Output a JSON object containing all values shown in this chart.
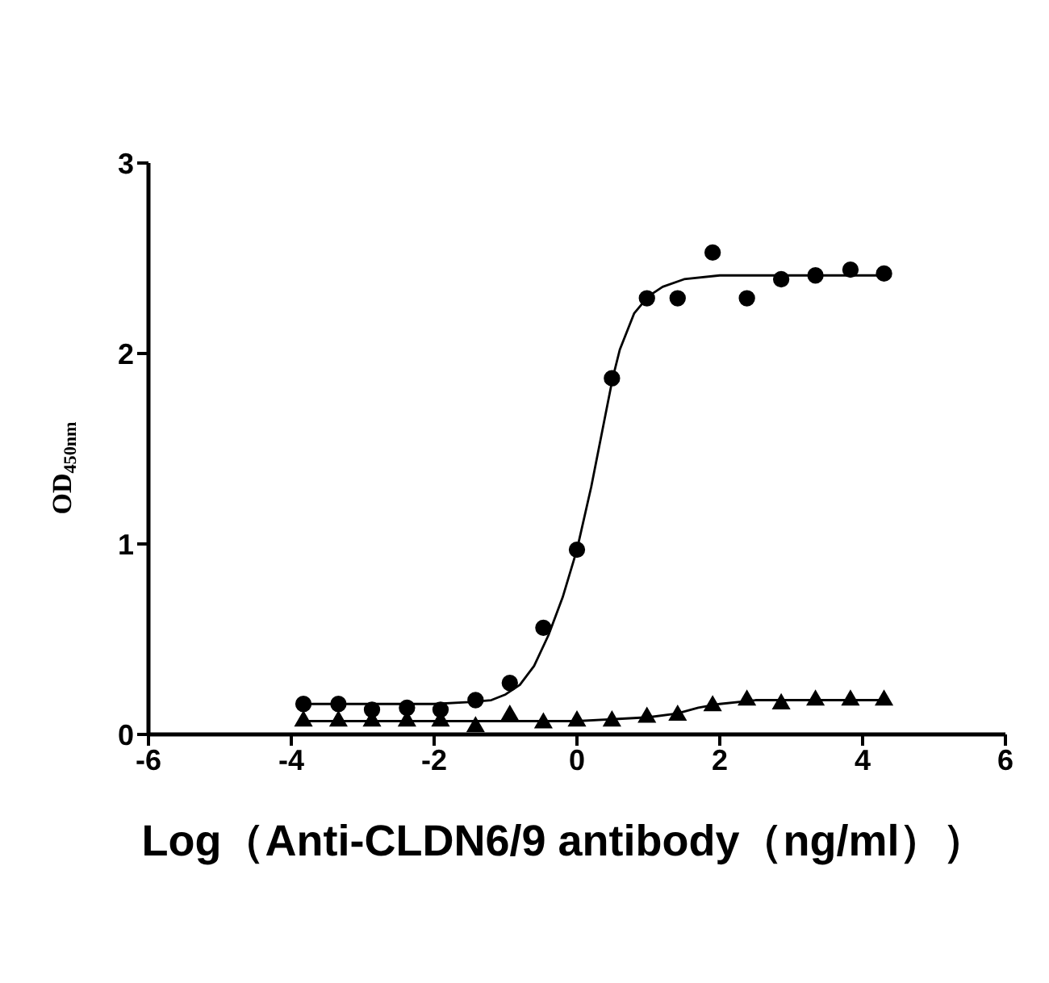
{
  "chart_data": {
    "type": "scatter",
    "xlabel": "Log（Anti-CLDN6/9 antibody（ng/ml））",
    "ylabel": "OD$_{450nm}$",
    "xlim": [
      -6,
      6
    ],
    "xticks": [
      -6,
      -4,
      -2,
      0,
      2,
      4,
      6
    ],
    "ylim": [
      0,
      3
    ],
    "yticks": [
      0,
      1,
      2,
      3
    ],
    "series": [
      {
        "marker": "circle",
        "color": "#000000",
        "x": [
          -3.83,
          -3.34,
          -2.87,
          -2.38,
          -1.91,
          -1.42,
          -0.94,
          -0.47,
          0.0,
          0.49,
          0.98,
          1.41,
          1.9,
          2.38,
          2.86,
          3.34,
          3.83,
          4.3
        ],
        "values": [
          0.16,
          0.16,
          0.13,
          0.14,
          0.13,
          0.18,
          0.27,
          0.56,
          0.97,
          1.87,
          2.29,
          2.29,
          2.53,
          2.29,
          2.39,
          2.41,
          2.44,
          2.42
        ]
      },
      {
        "type": "line",
        "marker": "none",
        "line_style": "solid",
        "color": "#000000",
        "x": [
          -3.83,
          -3.0,
          -2.0,
          -1.5,
          -1.2,
          -1.0,
          -0.8,
          -0.6,
          -0.4,
          -0.2,
          0.0,
          0.2,
          0.4,
          0.5,
          0.6,
          0.8,
          1.0,
          1.2,
          1.5,
          2.0,
          3.0,
          4.3
        ],
        "values": [
          0.16,
          0.16,
          0.16,
          0.17,
          0.18,
          0.21,
          0.26,
          0.36,
          0.52,
          0.72,
          0.97,
          1.3,
          1.68,
          1.87,
          2.02,
          2.21,
          2.3,
          2.35,
          2.39,
          2.41,
          2.41,
          2.41
        ]
      },
      {
        "marker": "triangle",
        "color": "#000000",
        "x": [
          -3.83,
          -3.34,
          -2.87,
          -2.38,
          -1.91,
          -1.42,
          -0.94,
          -0.47,
          0.0,
          0.49,
          0.98,
          1.41,
          1.9,
          2.38,
          2.86,
          3.34,
          3.83,
          4.3
        ],
        "values": [
          0.07,
          0.07,
          0.07,
          0.07,
          0.07,
          0.04,
          0.1,
          0.06,
          0.07,
          0.07,
          0.09,
          0.1,
          0.15,
          0.18,
          0.16,
          0.18,
          0.18,
          0.18
        ]
      },
      {
        "type": "line",
        "marker": "none",
        "line_style": "solid",
        "color": "#000000",
        "x": [
          -3.83,
          -1.0,
          0.0,
          0.5,
          1.0,
          1.4,
          1.7,
          2.0,
          2.5,
          3.0,
          4.3
        ],
        "values": [
          0.07,
          0.07,
          0.07,
          0.08,
          0.09,
          0.11,
          0.14,
          0.16,
          0.18,
          0.18,
          0.18
        ]
      }
    ]
  }
}
